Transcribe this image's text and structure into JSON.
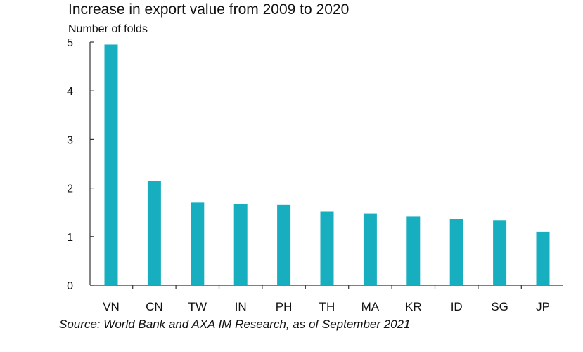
{
  "chart_data": {
    "type": "bar",
    "title": "Increase in export value from 2009 to 2020",
    "ylabel": "Number of folds",
    "xlabel": "",
    "categories": [
      "VN",
      "CN",
      "TW",
      "IN",
      "PH",
      "TH",
      "MA",
      "KR",
      "ID",
      "SG",
      "JP"
    ],
    "values": [
      4.95,
      2.15,
      1.7,
      1.67,
      1.65,
      1.51,
      1.48,
      1.41,
      1.36,
      1.34,
      1.1
    ],
    "ylim": [
      0,
      5
    ],
    "yticks": [
      "0",
      "1",
      "2",
      "3",
      "4",
      "5"
    ],
    "grid": false,
    "legend": "none",
    "bar_color": "#17AFC0",
    "source": "Source: World Bank and AXA IM Research, as of September 2021"
  }
}
